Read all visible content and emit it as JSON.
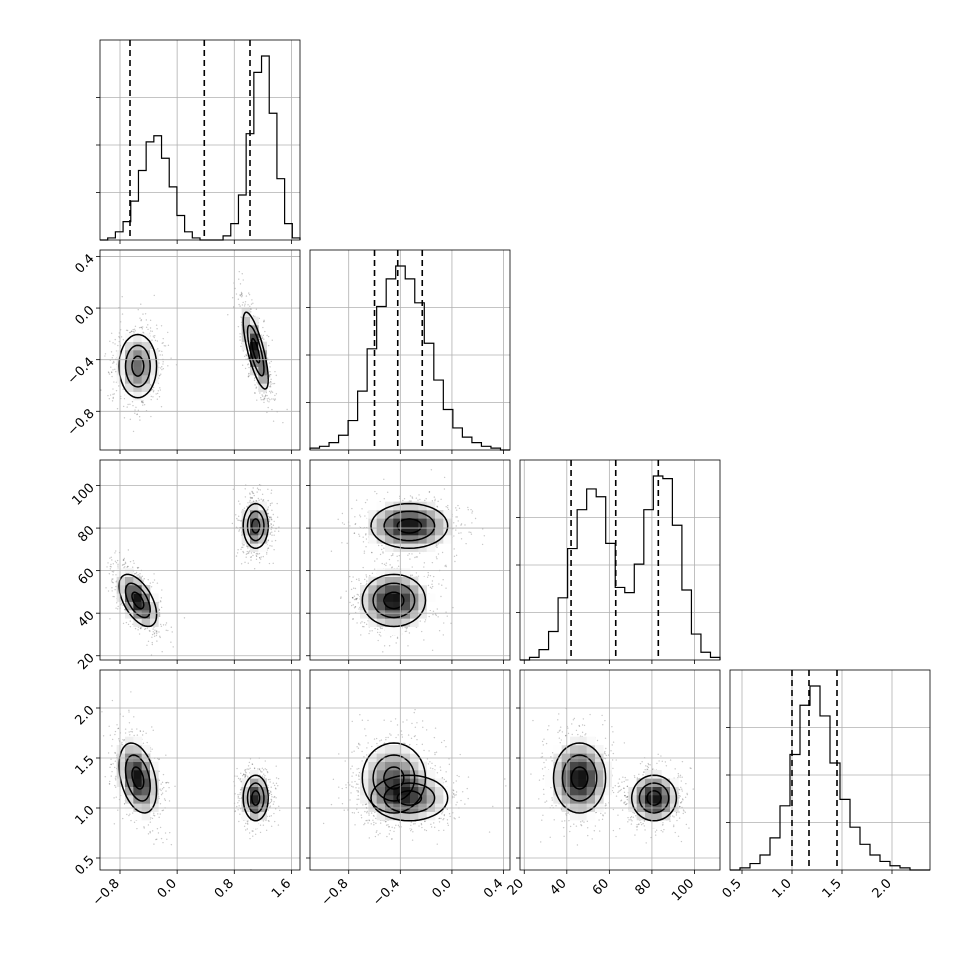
{
  "chart_data": {
    "type": "corner",
    "grid": true,
    "parameters": [
      {
        "id": "p0",
        "range": [
          -1.08,
          1.72
        ],
        "ticks": [
          -0.8,
          0.0,
          0.8,
          1.6
        ],
        "tick_labels": [
          "−0.8",
          "0.0",
          "0.8",
          "1.6"
        ],
        "histogram": [
          0.0,
          0.01,
          0.04,
          0.09,
          0.19,
          0.34,
          0.48,
          0.51,
          0.4,
          0.26,
          0.12,
          0.04,
          0.01,
          0.0,
          0.0,
          0.0,
          0.02,
          0.08,
          0.22,
          0.52,
          0.82,
          0.9,
          0.62,
          0.3,
          0.08,
          0.01
        ],
        "quantiles": [
          -0.66,
          0.38,
          1.02
        ]
      },
      {
        "id": "p1",
        "range": [
          -1.1,
          0.45
        ],
        "ticks": [
          -0.8,
          -0.4,
          0.0,
          0.4
        ],
        "tick_labels": [
          "−0.8",
          "−0.4",
          "0.0",
          "0.4"
        ],
        "histogram": [
          0.01,
          0.02,
          0.04,
          0.08,
          0.16,
          0.32,
          0.55,
          0.78,
          0.93,
          1.0,
          0.93,
          0.8,
          0.58,
          0.38,
          0.22,
          0.12,
          0.07,
          0.04,
          0.02,
          0.01,
          0.0
        ],
        "quantiles": [
          -0.6,
          -0.42,
          -0.23
        ]
      },
      {
        "id": "p2",
        "range": [
          18,
          112
        ],
        "ticks": [
          20,
          40,
          60,
          80,
          100
        ],
        "tick_labels": [
          "20",
          "40",
          "60",
          "80",
          "100"
        ],
        "histogram": [
          0.0,
          0.01,
          0.04,
          0.11,
          0.24,
          0.43,
          0.58,
          0.66,
          0.63,
          0.45,
          0.28,
          0.26,
          0.37,
          0.58,
          0.71,
          0.7,
          0.52,
          0.27,
          0.1,
          0.03,
          0.01
        ],
        "quantiles": [
          42,
          63,
          83
        ]
      },
      {
        "id": "p3",
        "range": [
          0.38,
          2.38
        ],
        "ticks": [
          0.5,
          1.0,
          1.5,
          2.0
        ],
        "tick_labels": [
          "0.5",
          "1.0",
          "1.5",
          "2.0"
        ],
        "histogram": [
          0.0,
          0.01,
          0.03,
          0.07,
          0.15,
          0.3,
          0.54,
          0.77,
          0.86,
          0.72,
          0.5,
          0.33,
          0.2,
          0.12,
          0.07,
          0.04,
          0.02,
          0.01,
          0.0,
          0.0
        ],
        "quantiles": [
          1.0,
          1.17,
          1.45
        ]
      }
    ],
    "modes": [
      {
        "weight": 0.5,
        "mean": [
          -0.55,
          -0.45,
          46,
          1.3
        ],
        "sd": [
          0.15,
          0.14,
          7,
          0.2
        ]
      },
      {
        "weight": 0.5,
        "mean": [
          1.1,
          -0.33,
          81,
          1.1
        ],
        "sd": [
          0.1,
          0.17,
          6,
          0.13
        ]
      }
    ]
  }
}
